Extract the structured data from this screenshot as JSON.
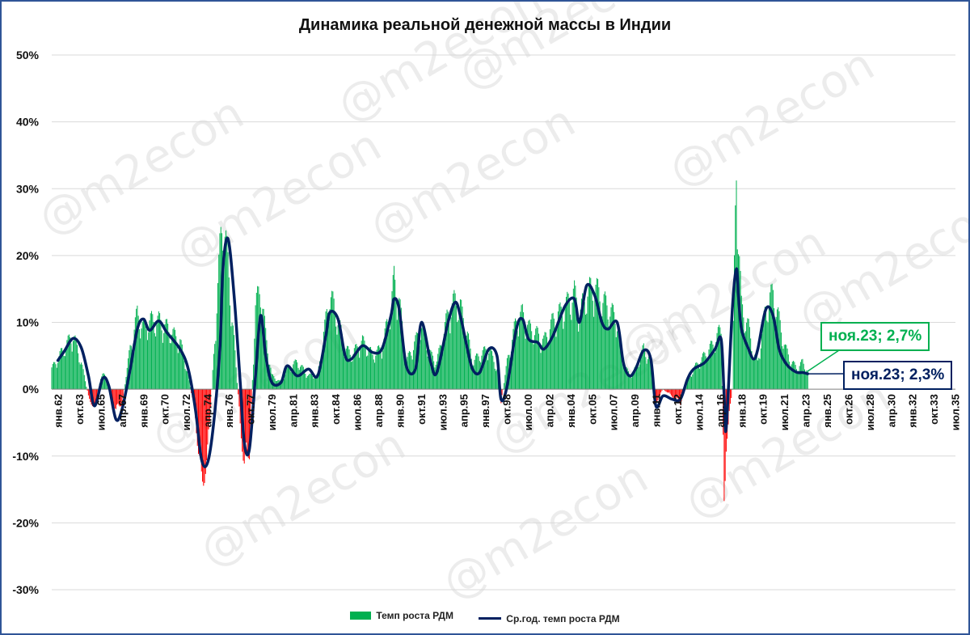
{
  "chart_data": {
    "type": "bar+line",
    "title": "Динамика реальной денежной массы в Индии",
    "ylim": [
      -30,
      50
    ],
    "ytick_step": 10,
    "y_tick_labels": [
      "50%",
      "40%",
      "30%",
      "20%",
      "10%",
      "0%",
      "-10%",
      "-20%",
      "-30%"
    ],
    "x_range": [
      "1962-01",
      "2035-12"
    ],
    "x_tick_labels": [
      "янв.62",
      "окт.63",
      "июл.65",
      "апр.67",
      "янв.69",
      "окт.70",
      "июл.72",
      "апр.74",
      "янв.76",
      "окт.77",
      "июл.79",
      "апр.81",
      "янв.83",
      "окт.84",
      "июл.86",
      "апр.88",
      "янв.90",
      "окт.91",
      "июл.93",
      "апр.95",
      "янв.97",
      "окт.98",
      "июл.00",
      "апр.02",
      "янв.04",
      "окт.05",
      "июл.07",
      "апр.09",
      "янв.11",
      "окт.12",
      "июл.14",
      "апр.16",
      "янв.18",
      "окт.19",
      "июл.21",
      "апр.23",
      "янв.25",
      "окт.26",
      "июл.28",
      "апр.30",
      "янв.32",
      "окт.33",
      "июл.35"
    ],
    "series": [
      {
        "name": "Темп роста РДМ",
        "kind": "bar",
        "positive_color": "#00b050",
        "negative_color": "#ff0000",
        "keypoints": [
          [
            "1962-01",
            3
          ],
          [
            "1963-01",
            6
          ],
          [
            "1963-10",
            8
          ],
          [
            "1964-06",
            4
          ],
          [
            "1965-01",
            -1
          ],
          [
            "1965-07",
            -3
          ],
          [
            "1966-03",
            3
          ],
          [
            "1966-09",
            0
          ],
          [
            "1967-04",
            -3
          ],
          [
            "1967-10",
            -2
          ],
          [
            "1968-06",
            6
          ],
          [
            "1969-01",
            11
          ],
          [
            "1969-07",
            9
          ],
          [
            "1970-01",
            10
          ],
          [
            "1970-10",
            10
          ],
          [
            "1971-06",
            9
          ],
          [
            "1972-07",
            7
          ],
          [
            "1973-03",
            2
          ],
          [
            "1973-10",
            -4
          ],
          [
            "1974-04",
            -14
          ],
          [
            "1974-10",
            -10
          ],
          [
            "1975-04",
            5
          ],
          [
            "1975-10",
            20
          ],
          [
            "1976-01",
            26
          ],
          [
            "1976-06",
            18
          ],
          [
            "1976-12",
            7
          ],
          [
            "1977-06",
            -5
          ],
          [
            "1977-10",
            -11
          ],
          [
            "1978-03",
            -9
          ],
          [
            "1978-09",
            12
          ],
          [
            "1979-02",
            15
          ],
          [
            "1979-07",
            8
          ],
          [
            "1980-01",
            2
          ],
          [
            "1980-10",
            1
          ],
          [
            "1981-04",
            3
          ],
          [
            "1982-02",
            4
          ],
          [
            "1983-01",
            2
          ],
          [
            "1983-10",
            2
          ],
          [
            "1984-06",
            10
          ],
          [
            "1984-10",
            14
          ],
          [
            "1985-06",
            10
          ],
          [
            "1986-01",
            6
          ],
          [
            "1986-07",
            5
          ],
          [
            "1987-06",
            7
          ],
          [
            "1988-04",
            5
          ],
          [
            "1989-01",
            6
          ],
          [
            "1989-10",
            12
          ],
          [
            "1990-01",
            16
          ],
          [
            "1990-06",
            13
          ],
          [
            "1991-01",
            4
          ],
          [
            "1991-10",
            7
          ],
          [
            "1992-04",
            9
          ],
          [
            "1993-01",
            5
          ],
          [
            "1993-07",
            4
          ],
          [
            "1994-06",
            11
          ],
          [
            "1995-01",
            13
          ],
          [
            "1995-06",
            12
          ],
          [
            "1996-01",
            8
          ],
          [
            "1996-06",
            4
          ],
          [
            "1997-01",
            5
          ],
          [
            "1997-10",
            6
          ],
          [
            "1998-06",
            3
          ],
          [
            "1998-10",
            -2
          ],
          [
            "1999-04",
            4
          ],
          [
            "2000-01",
            10
          ],
          [
            "2000-07",
            11
          ],
          [
            "2001-01",
            9
          ],
          [
            "2001-10",
            8
          ],
          [
            "2002-04",
            7
          ],
          [
            "2003-01",
            10
          ],
          [
            "2004-01",
            12
          ],
          [
            "2004-10",
            14
          ],
          [
            "2005-03",
            11
          ],
          [
            "2005-10",
            14
          ],
          [
            "2006-06",
            15
          ],
          [
            "2007-01",
            13
          ],
          [
            "2007-07",
            12
          ],
          [
            "2008-04",
            10
          ],
          [
            "2008-10",
            4
          ],
          [
            "2009-04",
            2
          ],
          [
            "2009-10",
            3
          ],
          [
            "2010-06",
            6
          ],
          [
            "2011-01",
            4
          ],
          [
            "2011-06",
            -2
          ],
          [
            "2012-01",
            0
          ],
          [
            "2012-10",
            -1
          ],
          [
            "2013-06",
            -2
          ],
          [
            "2014-01",
            1
          ],
          [
            "2014-07",
            3
          ],
          [
            "2015-06",
            5
          ],
          [
            "2016-04",
            7
          ],
          [
            "2016-10",
            9
          ],
          [
            "2017-01",
            -16
          ],
          [
            "2017-03",
            -8
          ],
          [
            "2017-09",
            0
          ],
          [
            "2018-01",
            35
          ],
          [
            "2018-03",
            22
          ],
          [
            "2018-06",
            12
          ],
          [
            "2019-01",
            9
          ],
          [
            "2019-06",
            5
          ],
          [
            "2019-10",
            4
          ],
          [
            "2020-06",
            12
          ],
          [
            "2021-01",
            14
          ],
          [
            "2021-07",
            10
          ],
          [
            "2022-01",
            6
          ],
          [
            "2022-07",
            4
          ],
          [
            "2023-01",
            3
          ],
          [
            "2023-06",
            4
          ],
          [
            "2023-11",
            2.7
          ]
        ]
      },
      {
        "name": "Ср.год. темп роста РДМ",
        "kind": "line",
        "color": "#002060",
        "points": [
          [
            "1962-07",
            4.3
          ],
          [
            "1963-01",
            5.6
          ],
          [
            "1963-10",
            7.6
          ],
          [
            "1964-06",
            6.2
          ],
          [
            "1965-01",
            2
          ],
          [
            "1965-07",
            -2.5
          ],
          [
            "1966-03",
            1.6
          ],
          [
            "1966-09",
            0.5
          ],
          [
            "1967-04",
            -4.5
          ],
          [
            "1967-10",
            -3
          ],
          [
            "1968-06",
            3
          ],
          [
            "1969-01",
            9
          ],
          [
            "1969-07",
            10.5
          ],
          [
            "1970-01",
            8.8
          ],
          [
            "1970-10",
            10.2
          ],
          [
            "1971-06",
            8.5
          ],
          [
            "1972-07",
            6
          ],
          [
            "1973-03",
            3
          ],
          [
            "1973-10",
            -3
          ],
          [
            "1974-04",
            -10.5
          ],
          [
            "1974-10",
            -11
          ],
          [
            "1975-04",
            -5
          ],
          [
            "1975-10",
            6
          ],
          [
            "1976-01",
            18
          ],
          [
            "1976-06",
            22.5
          ],
          [
            "1976-12",
            14
          ],
          [
            "1977-06",
            1
          ],
          [
            "1977-10",
            -8
          ],
          [
            "1978-03",
            -9
          ],
          [
            "1978-09",
            2
          ],
          [
            "1979-02",
            11
          ],
          [
            "1979-07",
            5
          ],
          [
            "1980-01",
            1
          ],
          [
            "1980-10",
            1
          ],
          [
            "1981-04",
            3.5
          ],
          [
            "1982-02",
            2
          ],
          [
            "1983-01",
            3
          ],
          [
            "1983-10",
            2
          ],
          [
            "1984-06",
            8
          ],
          [
            "1984-10",
            11.5
          ],
          [
            "1985-06",
            10.5
          ],
          [
            "1986-01",
            5
          ],
          [
            "1986-07",
            4.5
          ],
          [
            "1987-06",
            6.5
          ],
          [
            "1988-04",
            5.5
          ],
          [
            "1989-01",
            6
          ],
          [
            "1989-10",
            11
          ],
          [
            "1990-01",
            13.5
          ],
          [
            "1990-06",
            12
          ],
          [
            "1991-01",
            3.5
          ],
          [
            "1991-10",
            3
          ],
          [
            "1992-04",
            10
          ],
          [
            "1993-01",
            4
          ],
          [
            "1993-07",
            2.5
          ],
          [
            "1994-06",
            10
          ],
          [
            "1995-01",
            13
          ],
          [
            "1995-06",
            11
          ],
          [
            "1996-01",
            6
          ],
          [
            "1996-06",
            3
          ],
          [
            "1997-01",
            2.5
          ],
          [
            "1997-10",
            6
          ],
          [
            "1998-06",
            5
          ],
          [
            "1998-10",
            -1.5
          ],
          [
            "1999-04",
            0.5
          ],
          [
            "2000-01",
            9
          ],
          [
            "2000-07",
            10.5
          ],
          [
            "2001-01",
            7.5
          ],
          [
            "2001-10",
            7
          ],
          [
            "2002-04",
            6
          ],
          [
            "2003-01",
            8
          ],
          [
            "2004-01",
            12.5
          ],
          [
            "2004-10",
            13.5
          ],
          [
            "2005-03",
            10
          ],
          [
            "2005-10",
            15.5
          ],
          [
            "2006-06",
            14
          ],
          [
            "2007-01",
            10
          ],
          [
            "2007-07",
            9
          ],
          [
            "2008-04",
            10
          ],
          [
            "2008-10",
            4
          ],
          [
            "2009-04",
            2
          ],
          [
            "2009-10",
            3
          ],
          [
            "2010-06",
            5.8
          ],
          [
            "2011-01",
            4.5
          ],
          [
            "2011-06",
            -2.5
          ],
          [
            "2012-01",
            -1
          ],
          [
            "2012-10",
            -1.5
          ],
          [
            "2013-06",
            -1.5
          ],
          [
            "2014-01",
            1.5
          ],
          [
            "2014-07",
            3
          ],
          [
            "2015-06",
            4
          ],
          [
            "2016-04",
            6
          ],
          [
            "2016-10",
            7.5
          ],
          [
            "2017-01",
            -1
          ],
          [
            "2017-03",
            -5.8
          ],
          [
            "2017-09",
            12
          ],
          [
            "2018-01",
            18
          ],
          [
            "2018-03",
            14
          ],
          [
            "2018-06",
            9
          ],
          [
            "2019-01",
            6
          ],
          [
            "2019-06",
            4.5
          ],
          [
            "2019-10",
            6
          ],
          [
            "2020-06",
            12
          ],
          [
            "2021-01",
            11
          ],
          [
            "2021-07",
            6
          ],
          [
            "2022-01",
            4
          ],
          [
            "2022-07",
            3
          ],
          [
            "2023-01",
            2.5
          ],
          [
            "2023-06",
            2.5
          ],
          [
            "2023-11",
            2.3
          ]
        ]
      }
    ],
    "annotations": [
      {
        "text": "ноя.23; 2,7%",
        "series": "Темп роста РДМ",
        "date": "2023-11",
        "value": 2.7,
        "color": "#00b050"
      },
      {
        "text": "ноя.23; 2,3%",
        "series": "Ср.год. темп роста РДМ",
        "date": "2023-11",
        "value": 2.3,
        "color": "#002060"
      }
    ],
    "grid": "horizontal",
    "legend": "bottom-center",
    "watermark": "@m2econ"
  }
}
